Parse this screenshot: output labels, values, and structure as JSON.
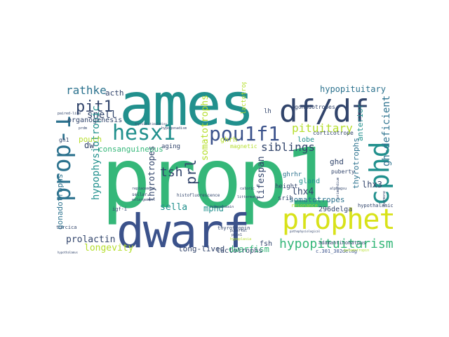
{
  "palette": {
    "dark_purple": "#44015b",
    "indigo": "#3b528b",
    "teal": "#21908d",
    "green": "#35b779",
    "lime": "#b5de2b",
    "yellow": "#d8e219",
    "blue_teal": "#2c728e",
    "navy": "#31446b"
  },
  "words": {
    "prop1": "prop1",
    "ames": "ames",
    "dwarf": "dwarf",
    "df_df": "df/df",
    "prophet": "prophet",
    "hesx1": "hesx1",
    "pou1f1": "pou1f1",
    "cphd": "cphd",
    "hypopituitarism": "hypopituitarism",
    "prop_1": "prop-1",
    "pit1": "pit1",
    "rathke": "rathke",
    "pituitary": "pituitary",
    "hypopituitary": "hypopituitary",
    "tsh": "tsh",
    "gh_deficient": "gh-deficient",
    "prl": "prl",
    "snell": "snell",
    "hypophysiotropic": "hypophysiotropic",
    "somatotrophs": "somatotrophs",
    "siblings": "siblings",
    "dwarfism": "dwarfism",
    "longevity": "longevity",
    "prolactin": "prolactin",
    "sella": "sella",
    "mphd": "mphd",
    "lifespan": "lifespan",
    "gonadotrophs": "gonadotrophs",
    "lhx4": "lhx4",
    "lhx3": "lhx3",
    "thyrotropes": "thyrotropes",
    "thyrotrophs": "thyrotrophs",
    "somatotropes": "somatotropes",
    "long_lived": "long-lived",
    "lactotrophs": "lactotrophs",
    "pouch": "pouch",
    "consanguineous": "consanguineous",
    "anterior": "anterior",
    "organogenesis": "organogenesis",
    "acth": "acth",
    "dw": "dw",
    "ghd": "ghd",
    "gland": "gland",
    "lobe": "lobe",
    "ghrhr": "ghrhr",
    "corticotrope": "corticotrope",
    "gonadotropes": "gonadotropes",
    "delga296": "296delga",
    "lactotropes": "lactotropes",
    "fsh": "fsh",
    "lh": "lh",
    "pulsatile": "pulsatile",
    "c301_302delag": "c.301_302delag",
    "adamantinomatous": "adamantinomatous",
    "hypothalamic": "hypothalamic",
    "gh1": "gh1",
    "aging": "aging",
    "ghrh": "ghrh",
    "magnetic": "magnetic",
    "resonance": "resonance",
    "height": "height",
    "srih": "srih",
    "puberty": "puberty",
    "thyrotropin": "thyrotropin",
    "turcica": "turcica",
    "igf_i": "igf-i",
    "sellar": "sellar",
    "enlargement": "enlargement",
    "replacement": "replacement",
    "histofluorescence": "histofluorescence",
    "hypogonadism": "hypogonadism",
    "homeodomain": "homeodomain",
    "littermates": "littermates",
    "caloric": "caloric",
    "pubertal": "pubertal",
    "pit1_small": "pitx1",
    "paired_like": "paired-like",
    "pathophysiological": "pathophysiological",
    "hypoplasia": "hypoplasia",
    "hormone": "hormone",
    "primordium": "primordium",
    "luteinizing": "thyroid-stimulating",
    "somatotroph": "somatotroph",
    "hypothalamus": "hypothalamus",
    "prdm": "prdm",
    "lpro": "lpro",
    "alphagsu": "alphagsu",
    "gonadotropin": "gonadotropin",
    "lr": "lr"
  }
}
